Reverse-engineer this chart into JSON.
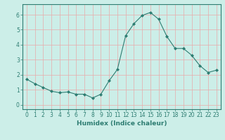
{
  "x": [
    0,
    1,
    2,
    3,
    4,
    5,
    6,
    7,
    8,
    9,
    10,
    11,
    12,
    13,
    14,
    15,
    16,
    17,
    18,
    19,
    20,
    21,
    22,
    23
  ],
  "y": [
    1.7,
    1.4,
    1.15,
    0.9,
    0.8,
    0.85,
    0.7,
    0.7,
    0.45,
    0.7,
    1.6,
    2.35,
    4.6,
    5.4,
    5.95,
    6.15,
    5.7,
    4.55,
    3.75,
    3.75,
    3.3,
    2.6,
    2.15,
    2.3
  ],
  "line_color": "#2e7d72",
  "marker": "D",
  "marker_size": 2.0,
  "bg_color": "#cceee8",
  "grid_color": "#e8aaaa",
  "xlabel": "Humidex (Indice chaleur)",
  "xlim": [
    -0.5,
    23.5
  ],
  "ylim": [
    -0.3,
    6.7
  ],
  "xticks": [
    0,
    1,
    2,
    3,
    4,
    5,
    6,
    7,
    8,
    9,
    10,
    11,
    12,
    13,
    14,
    15,
    16,
    17,
    18,
    19,
    20,
    21,
    22,
    23
  ],
  "yticks": [
    0,
    1,
    2,
    3,
    4,
    5,
    6
  ],
  "tick_label_size": 5.5,
  "xlabel_size": 6.5,
  "axis_color": "#2e7d72",
  "linewidth": 0.8
}
